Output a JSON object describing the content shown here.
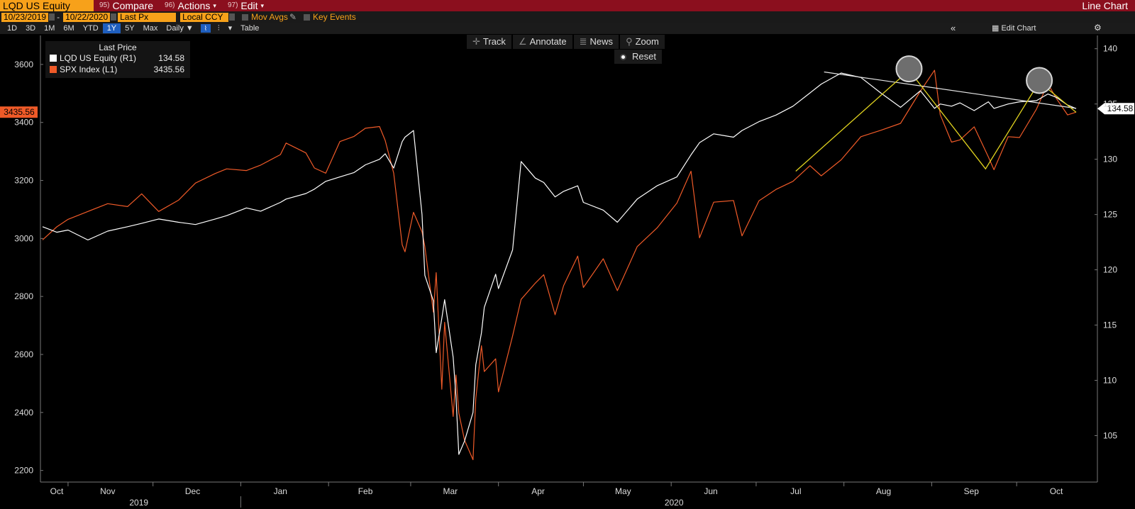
{
  "topbar": {
    "ticker": "LQD US Equity",
    "menus": [
      {
        "num": "95)",
        "label": "Compare",
        "caret": ""
      },
      {
        "num": "96)",
        "label": "Actions",
        "caret": "▾"
      },
      {
        "num": "97)",
        "label": "Edit",
        "caret": "▾"
      }
    ],
    "chart_type": "Line Chart"
  },
  "controls": {
    "start_date": "10/23/2019",
    "end_date": "10/22/2020",
    "field": "Last Px",
    "currency": "Local CCY",
    "mov_avgs": "Mov Avgs",
    "key_events": "Key Events"
  },
  "periods": {
    "items": [
      "1D",
      "3D",
      "1M",
      "6M",
      "YTD",
      "1Y",
      "5Y",
      "Max"
    ],
    "active": "1Y",
    "frequency": "Daily",
    "table": "Table",
    "edit_chart": "Edit Chart"
  },
  "tools": {
    "track": "Track",
    "annotate": "Annotate",
    "news": "News",
    "zoom": "Zoom",
    "reset": "Reset"
  },
  "legend": {
    "header": "Last Price",
    "rows": [
      {
        "name": "LQD US Equity  (R1)",
        "value": "134.58",
        "color": "#ffffff"
      },
      {
        "name": "SPX Index  (L1)",
        "value": "3435.56",
        "color": "#ef5a28"
      }
    ]
  },
  "price_tags": {
    "left": "3435.56",
    "right": "134.58"
  },
  "colors": {
    "brand_bar": "#8b0f1e",
    "field_orange": "#f7a11a",
    "spx_line": "#ef5a28",
    "lqd_line": "#ffffff",
    "pattern": "#e0d21f"
  },
  "chart_data": {
    "type": "line",
    "title": "",
    "xlabel": "",
    "left_axis": {
      "ylim": [
        2160,
        3700
      ],
      "ticks": [
        2200,
        2400,
        2600,
        2800,
        3000,
        3200,
        3400,
        3600
      ]
    },
    "right_axis": {
      "ylim": [
        100.8,
        141.2
      ],
      "ticks": [
        105,
        110,
        115,
        120,
        125,
        130,
        135,
        140
      ]
    },
    "x_tick_labels": [
      "Oct",
      "Nov",
      "Dec",
      "Jan",
      "Feb",
      "Mar",
      "Apr",
      "May",
      "Jun",
      "Jul",
      "Aug",
      "Sep",
      "Oct"
    ],
    "year_labels": [
      "2019",
      "2020"
    ],
    "x_range": [
      "2019-10-23",
      "2020-10-22"
    ],
    "series": [
      {
        "name": "SPX Index  (L1)",
        "axis": "left",
        "points": [
          [
            "2019-10-23",
            2995
          ],
          [
            "2019-10-28",
            3040
          ],
          [
            "2019-11-01",
            3066
          ],
          [
            "2019-11-08",
            3093
          ],
          [
            "2019-11-15",
            3120
          ],
          [
            "2019-11-22",
            3110
          ],
          [
            "2019-11-27",
            3154
          ],
          [
            "2019-12-03",
            3093
          ],
          [
            "2019-12-10",
            3132
          ],
          [
            "2019-12-16",
            3191
          ],
          [
            "2019-12-23",
            3224
          ],
          [
            "2019-12-27",
            3240
          ],
          [
            "2020-01-03",
            3234
          ],
          [
            "2020-01-08",
            3253
          ],
          [
            "2020-01-15",
            3289
          ],
          [
            "2020-01-17",
            3329
          ],
          [
            "2020-01-24",
            3295
          ],
          [
            "2020-01-27",
            3243
          ],
          [
            "2020-01-31",
            3225
          ],
          [
            "2020-02-05",
            3334
          ],
          [
            "2020-02-10",
            3352
          ],
          [
            "2020-02-14",
            3380
          ],
          [
            "2020-02-19",
            3386
          ],
          [
            "2020-02-21",
            3338
          ],
          [
            "2020-02-24",
            3225
          ],
          [
            "2020-02-27",
            2978
          ],
          [
            "2020-02-28",
            2954
          ],
          [
            "2020-03-02",
            3090
          ],
          [
            "2020-03-05",
            3023
          ],
          [
            "2020-03-06",
            2972
          ],
          [
            "2020-03-09",
            2746
          ],
          [
            "2020-03-10",
            2882
          ],
          [
            "2020-03-12",
            2480
          ],
          [
            "2020-03-13",
            2711
          ],
          [
            "2020-03-16",
            2386
          ],
          [
            "2020-03-17",
            2529
          ],
          [
            "2020-03-18",
            2398
          ],
          [
            "2020-03-20",
            2305
          ],
          [
            "2020-03-23",
            2237
          ],
          [
            "2020-03-24",
            2447
          ],
          [
            "2020-03-26",
            2630
          ],
          [
            "2020-03-27",
            2541
          ],
          [
            "2020-03-31",
            2585
          ],
          [
            "2020-04-01",
            2471
          ],
          [
            "2020-04-06",
            2664
          ],
          [
            "2020-04-09",
            2790
          ],
          [
            "2020-04-14",
            2846
          ],
          [
            "2020-04-17",
            2875
          ],
          [
            "2020-04-21",
            2737
          ],
          [
            "2020-04-24",
            2837
          ],
          [
            "2020-04-29",
            2939
          ],
          [
            "2020-05-01",
            2831
          ],
          [
            "2020-05-08",
            2930
          ],
          [
            "2020-05-13",
            2820
          ],
          [
            "2020-05-20",
            2972
          ],
          [
            "2020-05-27",
            3036
          ],
          [
            "2020-06-03",
            3122
          ],
          [
            "2020-06-08",
            3232
          ],
          [
            "2020-06-11",
            3002
          ],
          [
            "2020-06-16",
            3125
          ],
          [
            "2020-06-23",
            3131
          ],
          [
            "2020-06-26",
            3009
          ],
          [
            "2020-07-02",
            3130
          ],
          [
            "2020-07-08",
            3169
          ],
          [
            "2020-07-14",
            3197
          ],
          [
            "2020-07-20",
            3251
          ],
          [
            "2020-07-24",
            3216
          ],
          [
            "2020-07-31",
            3271
          ],
          [
            "2020-08-07",
            3351
          ],
          [
            "2020-08-14",
            3373
          ],
          [
            "2020-08-21",
            3397
          ],
          [
            "2020-08-28",
            3508
          ],
          [
            "2020-09-02",
            3580
          ],
          [
            "2020-09-04",
            3427
          ],
          [
            "2020-09-08",
            3332
          ],
          [
            "2020-09-11",
            3340
          ],
          [
            "2020-09-16",
            3385
          ],
          [
            "2020-09-21",
            3281
          ],
          [
            "2020-09-23",
            3237
          ],
          [
            "2020-09-28",
            3351
          ],
          [
            "2020-10-02",
            3348
          ],
          [
            "2020-10-08",
            3446
          ],
          [
            "2020-10-12",
            3534
          ],
          [
            "2020-10-15",
            3483
          ],
          [
            "2020-10-19",
            3426
          ],
          [
            "2020-10-22",
            3435.56
          ]
        ]
      },
      {
        "name": "LQD US Equity  (R1)",
        "axis": "right",
        "points": [
          [
            "2019-10-23",
            123.9
          ],
          [
            "2019-10-28",
            123.4
          ],
          [
            "2019-11-01",
            123.6
          ],
          [
            "2019-11-08",
            122.7
          ],
          [
            "2019-11-15",
            123.5
          ],
          [
            "2019-11-22",
            123.9
          ],
          [
            "2019-11-27",
            124.2
          ],
          [
            "2019-12-03",
            124.6
          ],
          [
            "2019-12-10",
            124.3
          ],
          [
            "2019-12-16",
            124.1
          ],
          [
            "2019-12-23",
            124.6
          ],
          [
            "2019-12-27",
            124.9
          ],
          [
            "2020-01-03",
            125.6
          ],
          [
            "2020-01-08",
            125.3
          ],
          [
            "2020-01-15",
            126.1
          ],
          [
            "2020-01-17",
            126.4
          ],
          [
            "2020-01-24",
            126.9
          ],
          [
            "2020-01-27",
            127.3
          ],
          [
            "2020-01-31",
            128.0
          ],
          [
            "2020-02-05",
            128.4
          ],
          [
            "2020-02-10",
            128.8
          ],
          [
            "2020-02-14",
            129.5
          ],
          [
            "2020-02-19",
            130.0
          ],
          [
            "2020-02-21",
            130.5
          ],
          [
            "2020-02-24",
            129.2
          ],
          [
            "2020-02-27",
            131.6
          ],
          [
            "2020-02-28",
            132.0
          ],
          [
            "2020-03-02",
            132.6
          ],
          [
            "2020-03-05",
            125.0
          ],
          [
            "2020-03-06",
            119.5
          ],
          [
            "2020-03-09",
            117.2
          ],
          [
            "2020-03-10",
            112.5
          ],
          [
            "2020-03-12",
            115.6
          ],
          [
            "2020-03-13",
            117.3
          ],
          [
            "2020-03-16",
            112.1
          ],
          [
            "2020-03-17",
            108.5
          ],
          [
            "2020-03-18",
            103.3
          ],
          [
            "2020-03-20",
            104.5
          ],
          [
            "2020-03-23",
            107.1
          ],
          [
            "2020-03-24",
            111.4
          ],
          [
            "2020-03-26",
            114.3
          ],
          [
            "2020-03-27",
            116.6
          ],
          [
            "2020-03-31",
            119.6
          ],
          [
            "2020-04-01",
            118.3
          ],
          [
            "2020-04-06",
            121.8
          ],
          [
            "2020-04-09",
            129.8
          ],
          [
            "2020-04-14",
            128.3
          ],
          [
            "2020-04-17",
            127.9
          ],
          [
            "2020-04-21",
            126.6
          ],
          [
            "2020-04-24",
            127.1
          ],
          [
            "2020-04-29",
            127.6
          ],
          [
            "2020-05-01",
            126.1
          ],
          [
            "2020-05-08",
            125.4
          ],
          [
            "2020-05-13",
            124.3
          ],
          [
            "2020-05-20",
            126.4
          ],
          [
            "2020-05-27",
            127.6
          ],
          [
            "2020-06-03",
            128.4
          ],
          [
            "2020-06-08",
            130.4
          ],
          [
            "2020-06-11",
            131.5
          ],
          [
            "2020-06-16",
            132.3
          ],
          [
            "2020-06-23",
            132.0
          ],
          [
            "2020-06-26",
            132.6
          ],
          [
            "2020-07-02",
            133.4
          ],
          [
            "2020-07-08",
            134.0
          ],
          [
            "2020-07-14",
            134.8
          ],
          [
            "2020-07-20",
            136.0
          ],
          [
            "2020-07-24",
            136.8
          ],
          [
            "2020-07-31",
            137.8
          ],
          [
            "2020-08-07",
            137.4
          ],
          [
            "2020-08-14",
            136.0
          ],
          [
            "2020-08-21",
            134.7
          ],
          [
            "2020-08-28",
            136.2
          ],
          [
            "2020-09-02",
            134.6
          ],
          [
            "2020-09-04",
            135.0
          ],
          [
            "2020-09-08",
            134.8
          ],
          [
            "2020-09-11",
            135.1
          ],
          [
            "2020-09-16",
            134.4
          ],
          [
            "2020-09-21",
            135.2
          ],
          [
            "2020-09-23",
            134.6
          ],
          [
            "2020-09-28",
            135.0
          ],
          [
            "2020-10-02",
            135.2
          ],
          [
            "2020-10-08",
            135.3
          ],
          [
            "2020-10-12",
            135.9
          ],
          [
            "2020-10-15",
            135.6
          ],
          [
            "2020-10-19",
            134.9
          ],
          [
            "2020-10-22",
            134.58
          ]
        ]
      }
    ],
    "annotations": {
      "trend_line": {
        "axis": "right",
        "points": [
          [
            "2020-07-25",
            137.9
          ],
          [
            "2020-10-22",
            134.6
          ]
        ]
      },
      "pattern": {
        "axis": "left",
        "points": [
          [
            "2020-07-15",
            3232
          ],
          [
            "2020-08-24",
            3580
          ],
          [
            "2020-09-20",
            3240
          ],
          [
            "2020-10-09",
            3540
          ],
          [
            "2020-10-22",
            3435
          ]
        ]
      },
      "circles_at": [
        [
          "2020-08-24",
          3580
        ],
        [
          "2020-10-09",
          3540
        ]
      ]
    }
  }
}
